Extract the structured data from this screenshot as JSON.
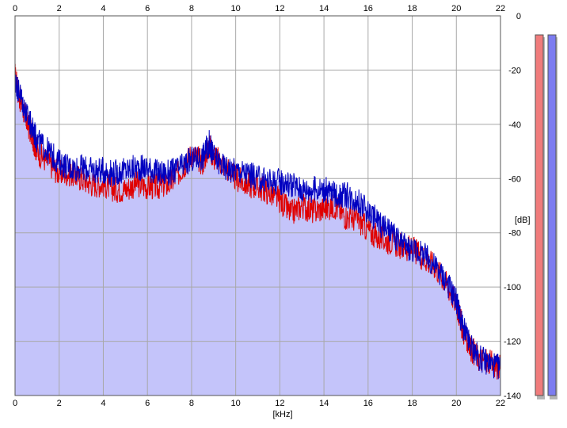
{
  "chart_data": {
    "type": "area",
    "title": "",
    "xlabel": "[kHz]",
    "ylabel": "[dB]",
    "xlim": [
      0,
      22
    ],
    "ylim": [
      -140,
      0
    ],
    "grid": true,
    "x_ticks": [
      0,
      2,
      4,
      6,
      8,
      10,
      12,
      14,
      16,
      18,
      20,
      22
    ],
    "y_ticks": [
      0,
      -20,
      -40,
      -60,
      -80,
      -100,
      -120,
      -140
    ],
    "x_tick_labels": [
      "0",
      "2",
      "4",
      "6",
      "8",
      "10",
      "12",
      "14",
      "16",
      "18",
      "20",
      "22"
    ],
    "y_tick_labels": [
      "0",
      "-20",
      "-40",
      "-60",
      "-80",
      "-100",
      "-120",
      "-140"
    ],
    "series": [
      {
        "color": "#e00000",
        "x": [
          0,
          0.2,
          0.5,
          0.8,
          1.0,
          1.5,
          2.0,
          2.5,
          3.0,
          3.5,
          4.0,
          4.5,
          5.0,
          5.5,
          6.0,
          6.5,
          7.0,
          7.5,
          8.0,
          8.5,
          8.8,
          9.0,
          9.5,
          10.0,
          10.5,
          11.0,
          11.5,
          12.0,
          12.5,
          13.0,
          13.5,
          14.0,
          14.5,
          15.0,
          15.5,
          16.0,
          16.5,
          17.0,
          17.5,
          18.0,
          18.5,
          19.0,
          19.5,
          20.0,
          20.3,
          20.6,
          21.0,
          21.5,
          22.0
        ],
        "y": [
          -22,
          -30,
          -38,
          -45,
          -50,
          -54,
          -58,
          -58,
          -60,
          -62,
          -62,
          -64,
          -64,
          -62,
          -63,
          -63,
          -62,
          -57,
          -51,
          -54,
          -48,
          -52,
          -55,
          -60,
          -62,
          -63,
          -65,
          -68,
          -73,
          -70,
          -72,
          -71,
          -70,
          -74,
          -75,
          -79,
          -82,
          -83,
          -85,
          -86,
          -89,
          -92,
          -98,
          -106,
          -116,
          -122,
          -126,
          -128,
          -130
        ]
      },
      {
        "color": "#0000c0",
        "x": [
          0,
          0.2,
          0.5,
          0.8,
          1.0,
          1.5,
          2.0,
          2.5,
          3.0,
          3.5,
          4.0,
          4.5,
          5.0,
          5.5,
          6.0,
          6.5,
          7.0,
          7.5,
          8.0,
          8.5,
          8.8,
          9.0,
          9.5,
          10.0,
          10.5,
          11.0,
          11.5,
          12.0,
          12.5,
          13.0,
          13.5,
          14.0,
          14.5,
          15.0,
          15.5,
          16.0,
          16.5,
          17.0,
          17.5,
          18.0,
          18.5,
          19.0,
          19.5,
          20.0,
          20.3,
          20.6,
          21.0,
          21.5,
          22.0
        ],
        "y": [
          -24,
          -28,
          -36,
          -42,
          -46,
          -50,
          -54,
          -56,
          -56,
          -57,
          -57,
          -58,
          -57,
          -56,
          -56,
          -58,
          -58,
          -56,
          -53,
          -52,
          -47,
          -52,
          -56,
          -57,
          -58,
          -60,
          -61,
          -61,
          -62,
          -64,
          -64,
          -64,
          -66,
          -66,
          -68,
          -72,
          -76,
          -80,
          -84,
          -86,
          -88,
          -92,
          -97,
          -105,
          -115,
          -121,
          -126,
          -128,
          -130
        ]
      }
    ],
    "area_fill": "#c4c4fa"
  },
  "level_meters": [
    {
      "color": "#f07c7c"
    },
    {
      "color": "#7c7cf0"
    }
  ]
}
